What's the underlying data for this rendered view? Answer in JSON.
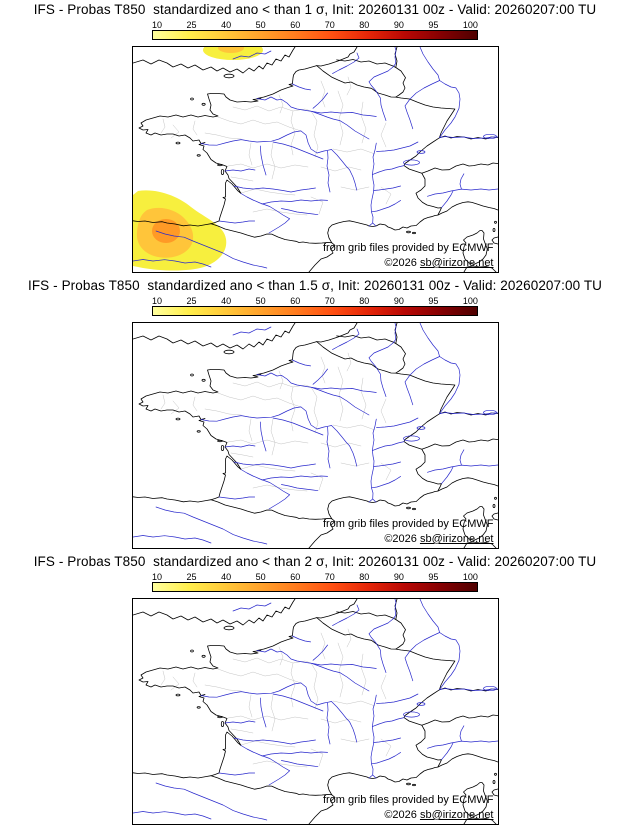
{
  "panels": [
    {
      "title": "IFS - Probas T850  standardized ano < than 1 σ, Init: 20260131 00z - Valid: 20260207:00 TU",
      "credit": "from grib files provided by ECMWF",
      "copyright_prefix": "©2026 ",
      "copyright_link": "sb@irizone.net"
    },
    {
      "title": "IFS - Probas T850  standardized ano < than 1.5 σ, Init: 20260131 00z - Valid: 20260207:00 TU",
      "credit": "from grib files provided by ECMWF",
      "copyright_prefix": "©2026 ",
      "copyright_link": "sb@irizone.net"
    },
    {
      "title": "IFS - Probas T850  standardized ano < than 2 σ, Init: 20260131 00z - Valid: 20260207:00 TU",
      "credit": "from grib files provided by ECMWF",
      "copyright_prefix": "©2026 ",
      "copyright_link": "sb@irizone.net"
    }
  ],
  "colorbar": {
    "ticks": [
      "10",
      "25",
      "40",
      "50",
      "60",
      "70",
      "80",
      "90",
      "95",
      "100"
    ],
    "colors": [
      "#ffff9e",
      "#ffee4c",
      "#ffc93a",
      "#ffa22c",
      "#ff7a1e",
      "#ff4f12",
      "#e42508",
      "#b80804",
      "#850002",
      "#4f0000"
    ]
  },
  "map": {
    "coast_color": "#000000",
    "river_color": "#2929cc",
    "department_border_color": "#c4c4c4",
    "anomaly_fill_outer": "#f7ef3e",
    "anomaly_fill_mid": "#ffc53a",
    "anomaly_fill_core": "#ff9a26"
  }
}
